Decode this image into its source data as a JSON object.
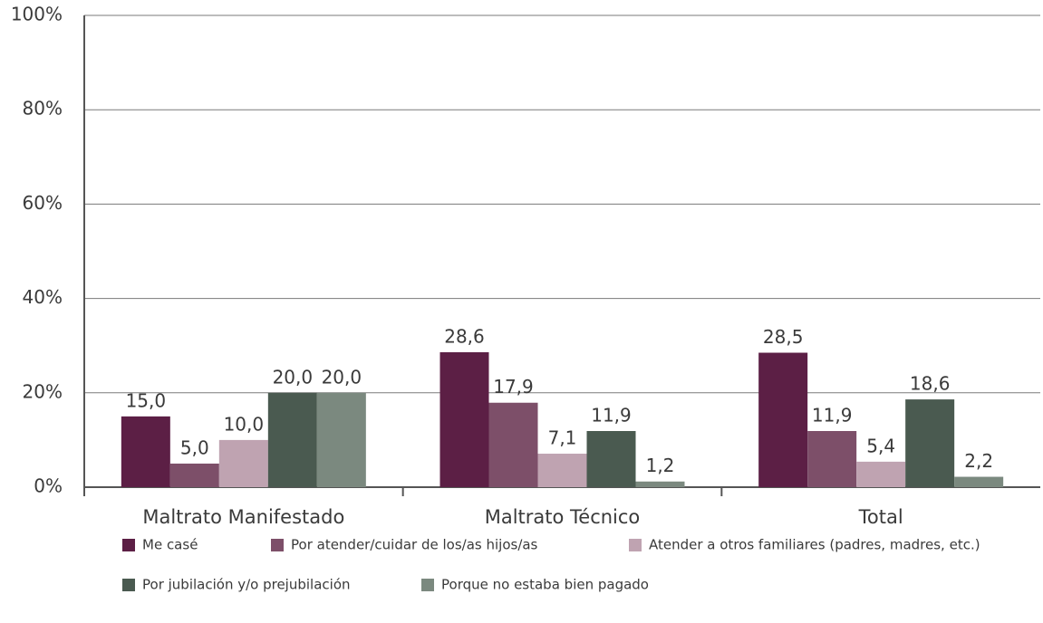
{
  "chart_data": {
    "type": "bar",
    "categories": [
      "Maltrato Manifestado",
      "Maltrato Técnico",
      "Total"
    ],
    "series": [
      {
        "name": "Me casé",
        "color": "#5c1f45",
        "values": [
          15.0,
          28.6,
          28.5
        ],
        "value_labels": [
          "15,0",
          "28,6",
          "28,5"
        ]
      },
      {
        "name": "Por atender/cuidar de los/as hijos/as",
        "color": "#7d4f69",
        "values": [
          5.0,
          17.9,
          11.9
        ],
        "value_labels": [
          "5,0",
          "17,9",
          "11,9"
        ]
      },
      {
        "name": "Atender a otros familiares (padres, madres, etc.)",
        "color": "#bfa3b1",
        "values": [
          10.0,
          7.1,
          5.4
        ],
        "value_labels": [
          "10,0",
          "7,1",
          "5,4"
        ]
      },
      {
        "name": "Por jubilación y/o prejubilación",
        "color": "#4a5a50",
        "values": [
          20.0,
          11.9,
          18.6
        ],
        "value_labels": [
          "20,0",
          "11,9",
          "18,6"
        ]
      },
      {
        "name": "Porque no estaba bien pagado",
        "color": "#7b897f",
        "values": [
          20.0,
          1.2,
          2.2
        ],
        "value_labels": [
          "20,0",
          "1,2",
          "2,2"
        ]
      }
    ],
    "ylim": [
      0,
      100
    ],
    "yticks": [
      {
        "value": 0,
        "label": "0%"
      },
      {
        "value": 20,
        "label": "20%"
      },
      {
        "value": 40,
        "label": "40%"
      },
      {
        "value": 60,
        "label": "60%"
      },
      {
        "value": 80,
        "label": "80%"
      },
      {
        "value": 100,
        "label": "100%"
      }
    ],
    "grid": true
  }
}
